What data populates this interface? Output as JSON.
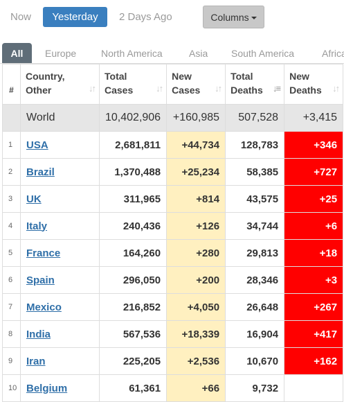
{
  "days": {
    "now": "Now",
    "yesterday": "Yesterday",
    "two_days": "2 Days Ago"
  },
  "columns_button": "Columns",
  "tabs": [
    "All",
    "Europe",
    "North America",
    "Asia",
    "South America",
    "Africa"
  ],
  "headers": {
    "num": "#",
    "country": [
      "Country,",
      "Other"
    ],
    "total_cases": [
      "Total",
      "Cases"
    ],
    "new_cases": [
      "New",
      "Cases"
    ],
    "total_deaths": [
      "Total",
      "Deaths"
    ],
    "new_deaths": [
      "New",
      "Deaths"
    ]
  },
  "world": {
    "name": "World",
    "total_cases": "10,402,906",
    "new_cases": "+160,985",
    "total_deaths": "507,528",
    "new_deaths": "+3,415"
  },
  "rows": [
    {
      "idx": "1",
      "country": "USA",
      "total_cases": "2,681,811",
      "new_cases": "+44,734",
      "total_deaths": "128,783",
      "new_deaths": "+346"
    },
    {
      "idx": "2",
      "country": "Brazil",
      "total_cases": "1,370,488",
      "new_cases": "+25,234",
      "total_deaths": "58,385",
      "new_deaths": "+727"
    },
    {
      "idx": "3",
      "country": "UK",
      "total_cases": "311,965",
      "new_cases": "+814",
      "total_deaths": "43,575",
      "new_deaths": "+25"
    },
    {
      "idx": "4",
      "country": "Italy",
      "total_cases": "240,436",
      "new_cases": "+126",
      "total_deaths": "34,744",
      "new_deaths": "+6"
    },
    {
      "idx": "5",
      "country": "France",
      "total_cases": "164,260",
      "new_cases": "+280",
      "total_deaths": "29,813",
      "new_deaths": "+18"
    },
    {
      "idx": "6",
      "country": "Spain",
      "total_cases": "296,050",
      "new_cases": "+200",
      "total_deaths": "28,346",
      "new_deaths": "+3"
    },
    {
      "idx": "7",
      "country": "Mexico",
      "total_cases": "216,852",
      "new_cases": "+4,050",
      "total_deaths": "26,648",
      "new_deaths": "+267"
    },
    {
      "idx": "8",
      "country": "India",
      "total_cases": "567,536",
      "new_cases": "+18,339",
      "total_deaths": "16,904",
      "new_deaths": "+417"
    },
    {
      "idx": "9",
      "country": "Iran",
      "total_cases": "225,205",
      "new_cases": "+2,536",
      "total_deaths": "10,670",
      "new_deaths": "+162"
    },
    {
      "idx": "10",
      "country": "Belgium",
      "total_cases": "61,361",
      "new_cases": "+66",
      "total_deaths": "9,732",
      "new_deaths": ""
    }
  ],
  "colors": {
    "active_day": "#3a7fbf",
    "new_cases_bg": "#fff0c0",
    "new_deaths_bg": "#ff0000",
    "tab_active": "#5f6d78"
  }
}
